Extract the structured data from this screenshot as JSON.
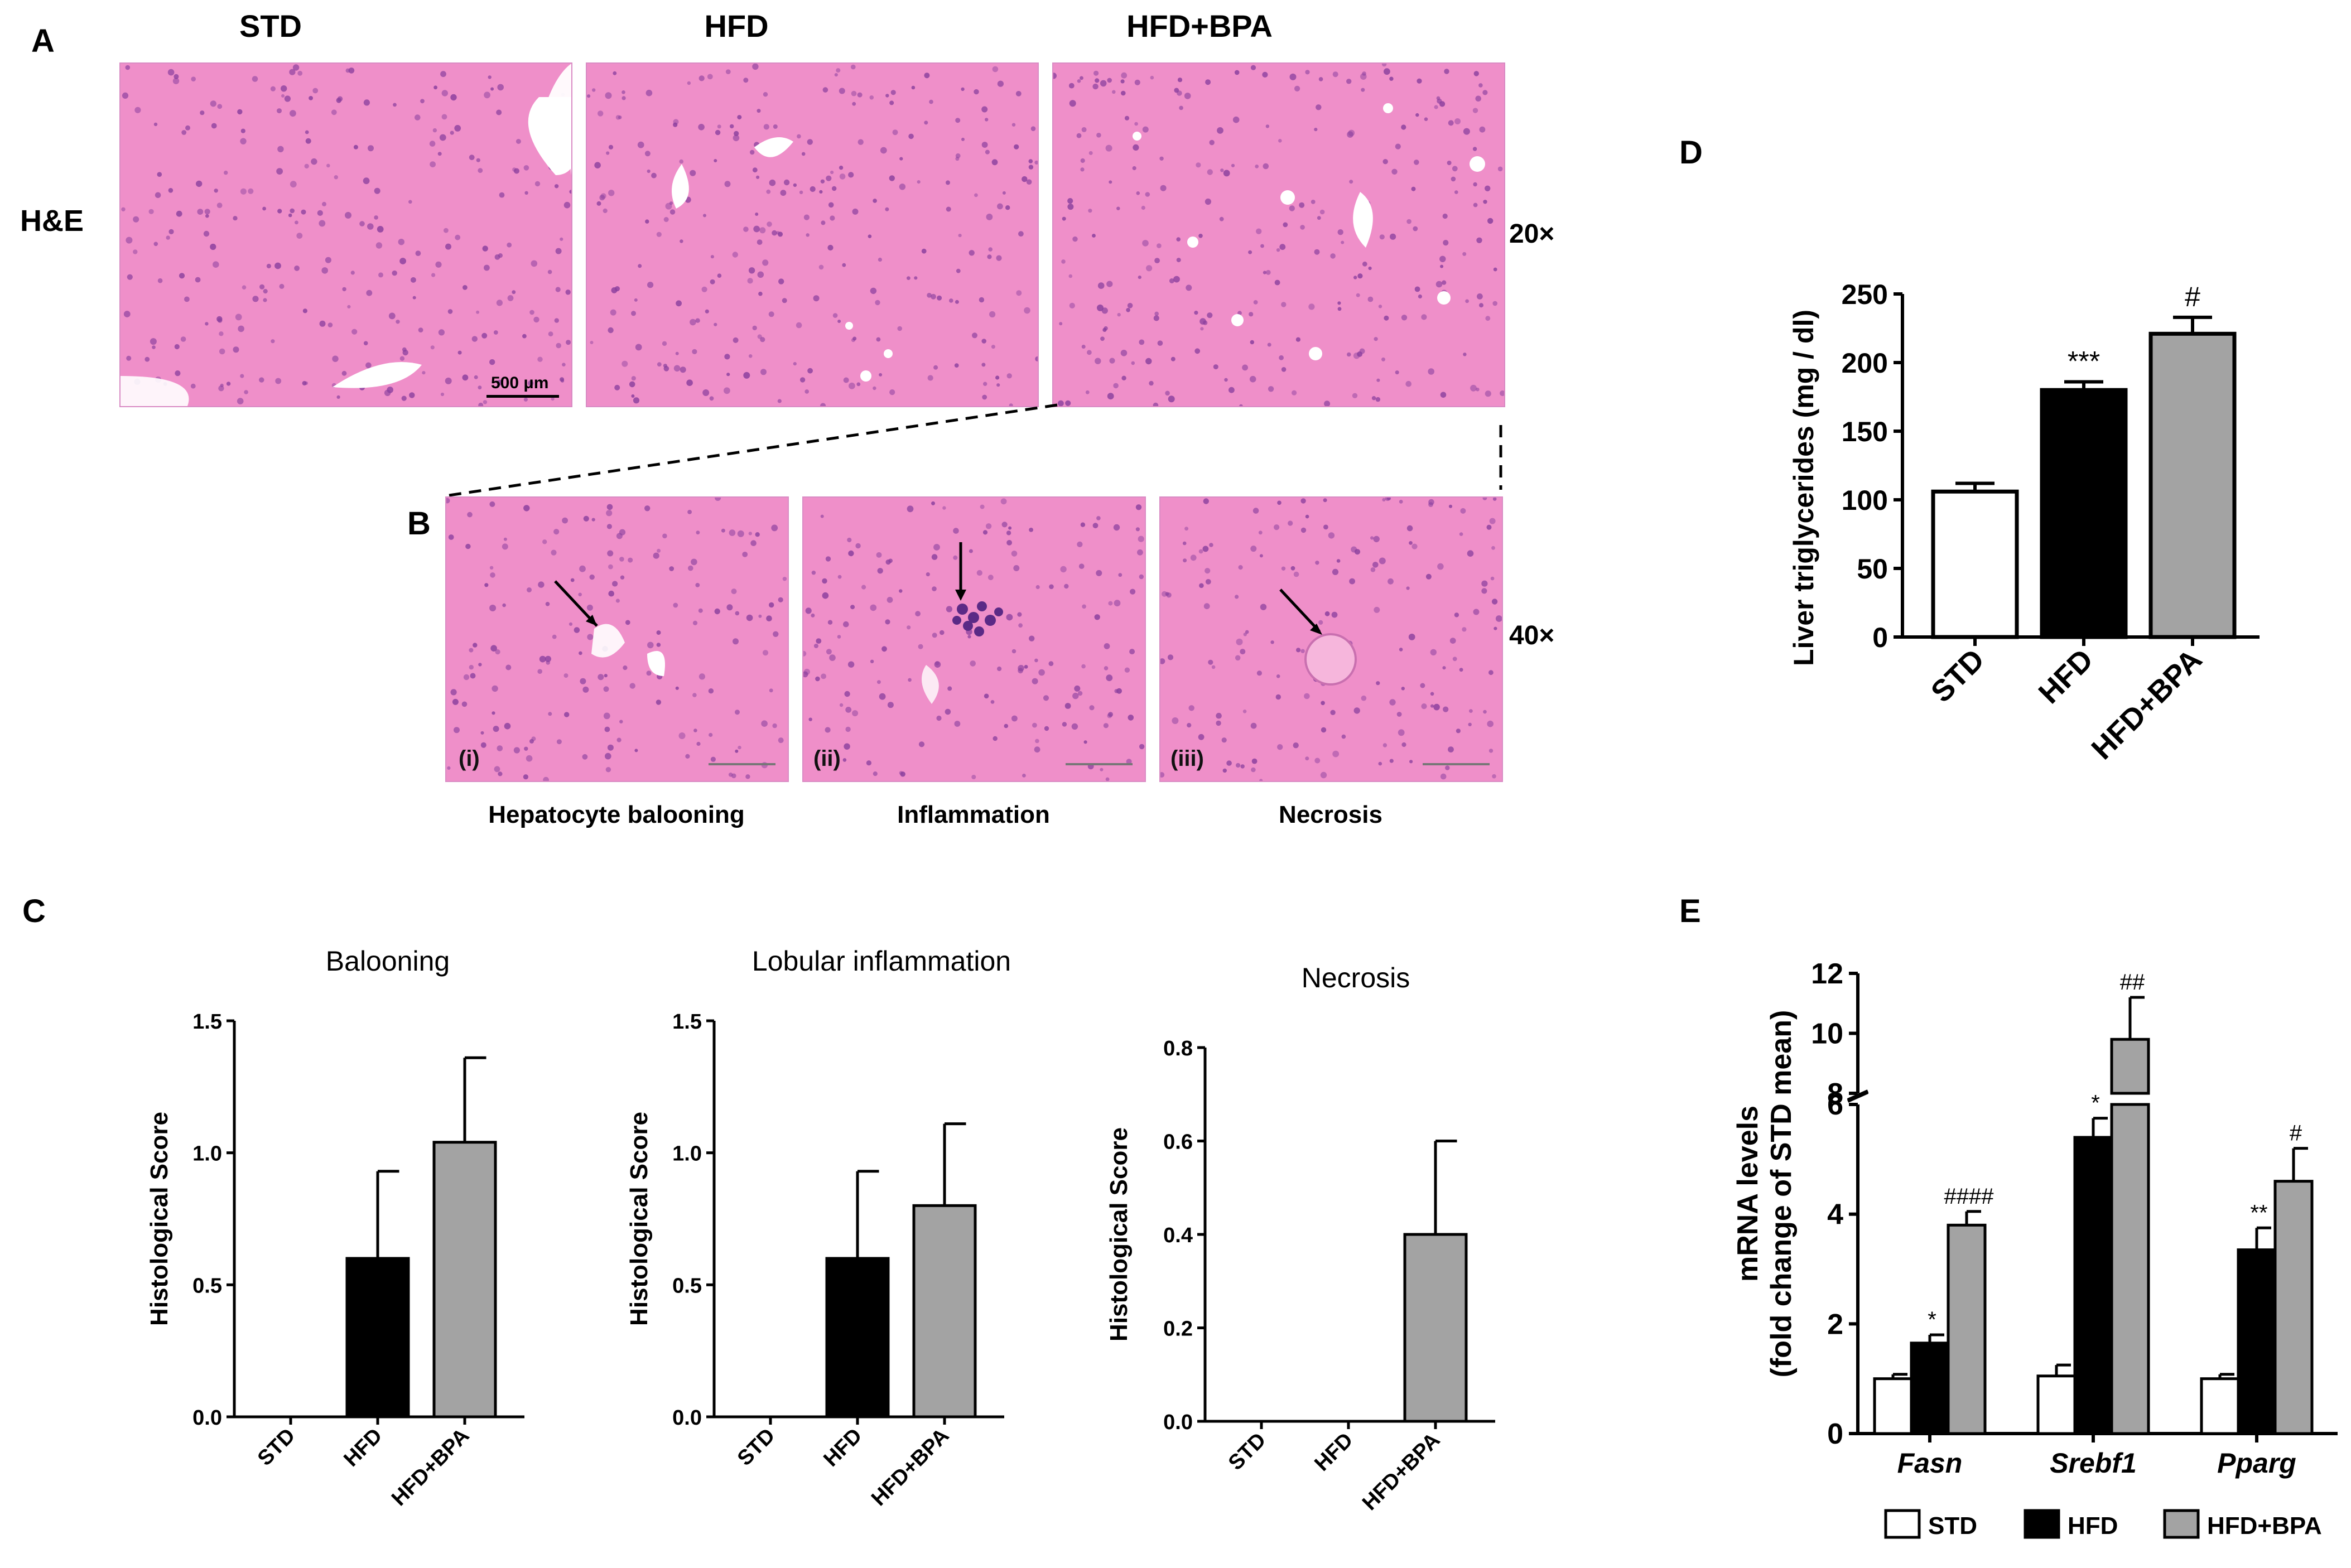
{
  "panels": {
    "A": "A",
    "B": "B",
    "C": "C",
    "D": "D",
    "E": "E"
  },
  "panel_a": {
    "row_label": "H&E",
    "columns": [
      "STD",
      "HFD",
      "HFD+BPA"
    ],
    "magnification": "20×",
    "scale_bar": "500 μm"
  },
  "panel_b": {
    "magnification": "40×",
    "images": [
      {
        "roman": "(i)",
        "caption": "Hepatocyte balooning"
      },
      {
        "roman": "(ii)",
        "caption": "Inflammation"
      },
      {
        "roman": "(iii)",
        "caption": "Necrosis"
      }
    ]
  },
  "colors": {
    "STD": "#ffffff",
    "HFD": "#000000",
    "HFD+BPA": "#a3a3a3",
    "tissue": "#f08fc8",
    "nuclei": "#8a3f9e"
  },
  "chart_data": [
    {
      "id": "C1",
      "type": "bar",
      "title": "Balooning",
      "ylabel": "Histological Score",
      "categories": [
        "STD",
        "HFD",
        "HFD+BPA"
      ],
      "values": [
        0,
        0.6,
        1.04
      ],
      "errors": [
        0,
        0.33,
        0.32
      ],
      "ylim": [
        0,
        1.5
      ],
      "yticks": [
        0.0,
        0.5,
        1.0,
        1.5
      ],
      "ytick_labels": [
        "0.0",
        "0.5",
        "1.0",
        "1.5"
      ]
    },
    {
      "id": "C2",
      "type": "bar",
      "title": "Lobular inflammation",
      "ylabel": "Histological Score",
      "categories": [
        "STD",
        "HFD",
        "HFD+BPA"
      ],
      "values": [
        0,
        0.6,
        0.8
      ],
      "errors": [
        0,
        0.33,
        0.31
      ],
      "ylim": [
        0,
        1.5
      ],
      "yticks": [
        0.0,
        0.5,
        1.0,
        1.5
      ],
      "ytick_labels": [
        "0.0",
        "0.5",
        "1.0",
        "1.5"
      ]
    },
    {
      "id": "C3",
      "type": "bar",
      "title": "Necrosis",
      "ylabel": "Histological Score",
      "categories": [
        "STD",
        "HFD",
        "HFD+BPA"
      ],
      "values": [
        0,
        0,
        0.4
      ],
      "errors": [
        0,
        0,
        0.2
      ],
      "ylim": [
        0,
        0.8
      ],
      "yticks": [
        0.0,
        0.2,
        0.4,
        0.6,
        0.8
      ],
      "ytick_labels": [
        "0.0",
        "0.2",
        "0.4",
        "0.6",
        "0.8"
      ]
    },
    {
      "id": "D",
      "type": "bar",
      "title": "",
      "ylabel": "Liver triglycerides (mg / dl)",
      "categories": [
        "STD",
        "HFD",
        "HFD+BPA"
      ],
      "values": [
        106,
        180,
        221
      ],
      "errors": [
        6,
        6,
        12
      ],
      "annotations": [
        "",
        "***",
        "#"
      ],
      "ylim": [
        0,
        250
      ],
      "yticks": [
        0,
        50,
        100,
        150,
        200,
        250
      ],
      "ytick_labels": [
        "0",
        "50",
        "100",
        "150",
        "200",
        "250"
      ]
    },
    {
      "id": "E",
      "type": "bar",
      "title": "",
      "ylabel": [
        "mRNA levels",
        "(fold change of STD mean)"
      ],
      "categories": [
        "Fasn",
        "Srebf1",
        "Pparg"
      ],
      "series": [
        {
          "name": "STD",
          "values": [
            1.0,
            1.05,
            1.0
          ],
          "errors": [
            0.08,
            0.2,
            0.08
          ],
          "annotations": [
            "",
            "",
            ""
          ]
        },
        {
          "name": "HFD",
          "values": [
            1.65,
            5.4,
            3.35
          ],
          "errors": [
            0.15,
            0.35,
            0.4
          ],
          "annotations": [
            "*",
            "*",
            "**"
          ]
        },
        {
          "name": "HFD+BPA",
          "values": [
            3.8,
            9.8,
            4.6
          ],
          "errors": [
            0.25,
            1.4,
            0.6
          ],
          "annotations": [
            "####",
            "##",
            "#"
          ]
        }
      ],
      "axis_break": [
        6,
        8
      ],
      "ylim": [
        0,
        12
      ],
      "yticks": [
        0,
        2,
        4,
        6,
        8,
        10,
        12
      ],
      "ytick_labels": [
        "0",
        "2",
        "4",
        "6",
        "8",
        "10",
        "12"
      ],
      "legend_placement": "bottom"
    }
  ]
}
